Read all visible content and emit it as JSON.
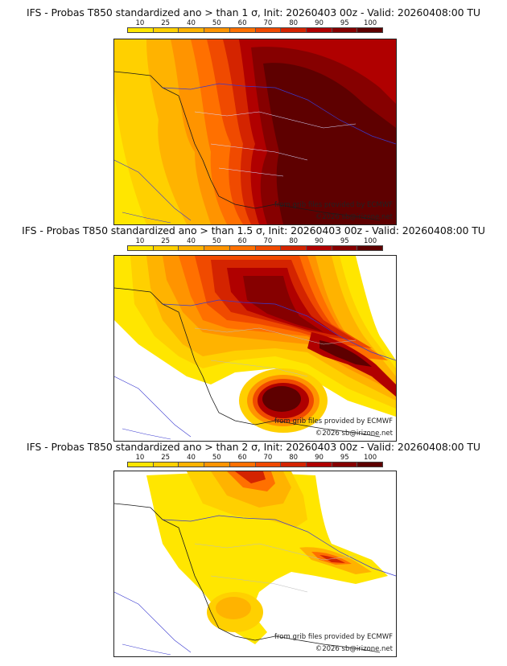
{
  "colors": [
    "#ffe600",
    "#ffd000",
    "#ffb300",
    "#ff9400",
    "#ff7000",
    "#f04a00",
    "#d42400",
    "#b00000",
    "#860000",
    "#5e0000"
  ],
  "legend_ticks": [
    "10",
    "25",
    "40",
    "50",
    "60",
    "70",
    "80",
    "90",
    "95",
    "100"
  ],
  "panels": [
    {
      "title": "IFS - Probas T850  standardized ano > than 1 σ, Init: 20260403 00z - Valid: 20260408:00 TU",
      "credit_source": "from grib files provided by ECMWF",
      "credit_copyright": "©2026 sb@irizone.net"
    },
    {
      "title": "IFS - Probas T850  standardized ano > than 1.5 σ, Init: 20260403 00z - Valid: 20260408:00 TU",
      "credit_source": "from grib files provided by ECMWF",
      "credit_copyright": "©2026 sb@irizone.net"
    },
    {
      "title": "IFS - Probas T850  standardized ano > than 2 σ, Init: 20260403 00z - Valid: 20260408:00 TU",
      "credit_source": "from grib files provided by ECMWF",
      "credit_copyright": "©2026 sb@irizone.net"
    }
  ]
}
